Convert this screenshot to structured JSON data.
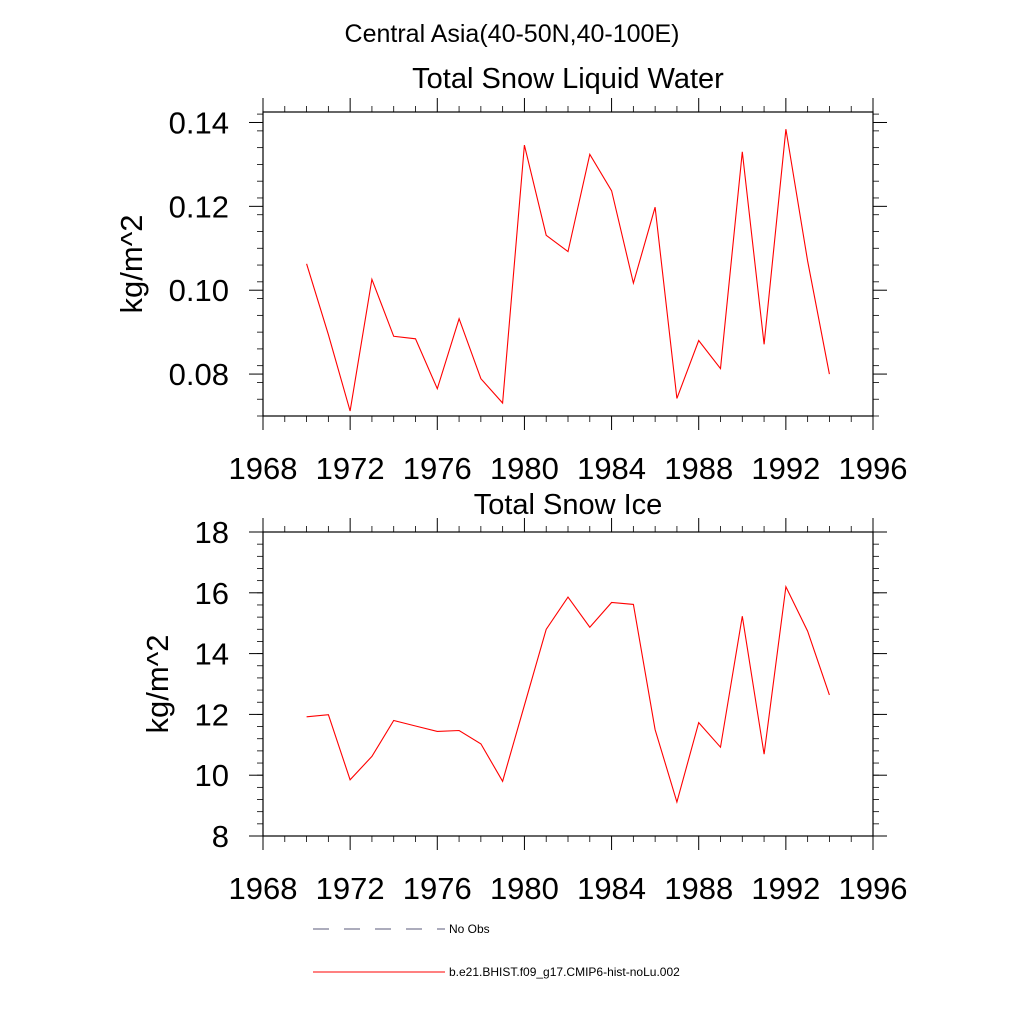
{
  "figure": {
    "suptitle": "Central Asia(40-50N,40-100E)"
  },
  "chart_data": [
    {
      "type": "line",
      "title": "Total Snow Liquid Water",
      "xlabel": "",
      "ylabel": "kg/m^2",
      "xlim": [
        1968,
        1996
      ],
      "ylim": [
        0.07,
        0.1425
      ],
      "xticks": [
        1968,
        1972,
        1976,
        1980,
        1984,
        1988,
        1992,
        1996
      ],
      "yticks": [
        0.08,
        0.1,
        0.12,
        0.14
      ],
      "ytick_labels": [
        "0.08",
        "0.10",
        "0.12",
        "0.14"
      ],
      "series": [
        {
          "name": "b.e21.BHIST.f09_g17.CMIP6-hist-noLu.002",
          "color": "#ff0000",
          "x": [
            1970,
            1971,
            1972,
            1973,
            1974,
            1975,
            1976,
            1977,
            1978,
            1979,
            1980,
            1981,
            1982,
            1983,
            1984,
            1985,
            1986,
            1987,
            1988,
            1989,
            1990,
            1991,
            1992,
            1993,
            1994
          ],
          "y": [
            0.1063,
            0.0894,
            0.0712,
            0.1026,
            0.089,
            0.0884,
            0.0765,
            0.0932,
            0.0789,
            0.0731,
            0.1346,
            0.1131,
            0.1092,
            0.1324,
            0.1237,
            0.1017,
            0.1198,
            0.0742,
            0.088,
            0.0813,
            0.133,
            0.0871,
            0.1384,
            0.107,
            0.08
          ]
        }
      ]
    },
    {
      "type": "line",
      "title": "Total Snow Ice",
      "xlabel": "",
      "ylabel": "kg/m^2",
      "xlim": [
        1968,
        1996
      ],
      "ylim": [
        8,
        18
      ],
      "xticks": [
        1968,
        1972,
        1976,
        1980,
        1984,
        1988,
        1992,
        1996
      ],
      "yticks": [
        8,
        10,
        12,
        14,
        16,
        18
      ],
      "ytick_labels": [
        "8",
        "10",
        "12",
        "14",
        "16",
        "18"
      ],
      "series": [
        {
          "name": "b.e21.BHIST.f09_g17.CMIP6-hist-noLu.002",
          "color": "#ff0000",
          "x": [
            1970,
            1971,
            1972,
            1973,
            1974,
            1975,
            1976,
            1977,
            1978,
            1979,
            1980,
            1981,
            1982,
            1983,
            1984,
            1985,
            1986,
            1987,
            1988,
            1989,
            1990,
            1991,
            1992,
            1993,
            1994
          ],
          "y": [
            11.92,
            11.99,
            9.85,
            10.62,
            11.8,
            11.62,
            11.44,
            11.47,
            11.03,
            9.8,
            12.3,
            14.8,
            15.86,
            14.87,
            15.68,
            15.62,
            11.5,
            9.12,
            11.73,
            10.92,
            15.23,
            10.69,
            16.2,
            14.74,
            12.64
          ]
        }
      ]
    }
  ],
  "legend": {
    "items": [
      {
        "label": "No Obs",
        "style": "dashed",
        "color": "#000000"
      },
      {
        "label": "b.e21.BHIST.f09_g17.CMIP6-hist-noLu.002",
        "style": "solid",
        "color": "#ff0000"
      }
    ]
  }
}
